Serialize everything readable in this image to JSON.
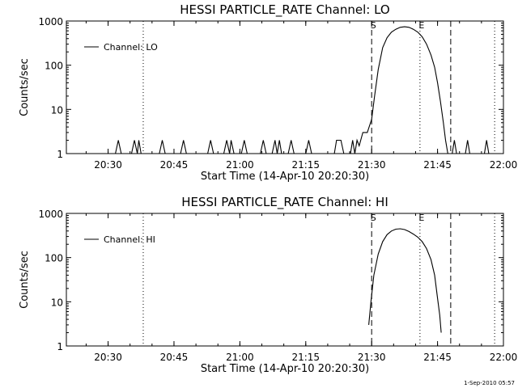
{
  "footer_timestamp": "1-Sep-2010 05:57",
  "chart_data": [
    {
      "type": "line",
      "title": "HESSI PARTICLE_RATE Channel: LO",
      "xlabel": "Start Time (14-Apr-10 20:20:30)",
      "ylabel": "Counts/sec",
      "xlim": [
        "20:20:30",
        "22:00:00"
      ],
      "ylim": [
        1,
        1000
      ],
      "yscale": "log",
      "xticks": [
        "20:30",
        "20:45",
        "21:00",
        "21:15",
        "21:30",
        "21:45",
        "22:00"
      ],
      "yticks": [
        "1",
        "10",
        "100",
        "1000"
      ],
      "legend": {
        "position": "top-left",
        "entries": [
          "Channel: LO"
        ]
      },
      "markers": [
        {
          "label": "S",
          "time": "21:30",
          "style": "dashed"
        },
        {
          "label": "E",
          "time": "21:41",
          "style": "dotted"
        },
        {
          "label": "",
          "time": "21:48",
          "style": "dashed"
        },
        {
          "label": "",
          "time": "20:38",
          "style": "dotted"
        },
        {
          "label": "",
          "time": "21:58",
          "style": "dotted"
        }
      ],
      "series": [
        {
          "name": "Channel: LO",
          "points": [
            [
              "20:20:30",
              1
            ],
            [
              "20:31:40",
              1
            ],
            [
              "20:32:20",
              2
            ],
            [
              "20:33:00",
              1
            ],
            [
              "20:35:20",
              1
            ],
            [
              "20:36:00",
              2
            ],
            [
              "20:36:40",
              1
            ],
            [
              "20:37:00",
              2
            ],
            [
              "20:37:30",
              1
            ],
            [
              "20:41:40",
              1
            ],
            [
              "20:42:20",
              2
            ],
            [
              "20:43:00",
              1
            ],
            [
              "20:46:30",
              1
            ],
            [
              "20:47:10",
              2
            ],
            [
              "20:47:50",
              1
            ],
            [
              "20:52:40",
              1
            ],
            [
              "20:53:20",
              2
            ],
            [
              "20:54:00",
              1
            ],
            [
              "20:56:20",
              1
            ],
            [
              "20:57:00",
              2
            ],
            [
              "20:57:40",
              1
            ],
            [
              "20:58:00",
              2
            ],
            [
              "20:58:40",
              1
            ],
            [
              "21:00:20",
              1
            ],
            [
              "21:01:00",
              2
            ],
            [
              "21:01:40",
              1
            ],
            [
              "21:04:40",
              1
            ],
            [
              "21:05:20",
              2
            ],
            [
              "21:06:00",
              1
            ],
            [
              "21:07:20",
              1
            ],
            [
              "21:08:00",
              2
            ],
            [
              "21:08:30",
              1
            ],
            [
              "21:09:00",
              2
            ],
            [
              "21:09:30",
              1
            ],
            [
              "21:11:00",
              1
            ],
            [
              "21:11:40",
              2
            ],
            [
              "21:12:20",
              1
            ],
            [
              "21:15:00",
              1
            ],
            [
              "21:15:40",
              2
            ],
            [
              "21:16:20",
              1
            ],
            [
              "21:21:30",
              1
            ],
            [
              "21:22:00",
              2
            ],
            [
              "21:23:00",
              2
            ],
            [
              "21:23:40",
              1
            ],
            [
              "21:25:10",
              1
            ],
            [
              "21:25:40",
              2
            ],
            [
              "21:26:10",
              1
            ],
            [
              "21:26:40",
              2
            ],
            [
              "21:27:10",
              1.5
            ],
            [
              "21:28:00",
              3
            ],
            [
              "21:29:00",
              3
            ],
            [
              "21:30:00",
              6
            ],
            [
              "21:30:40",
              20
            ],
            [
              "21:31:30",
              80
            ],
            [
              "21:32:30",
              250
            ],
            [
              "21:33:30",
              420
            ],
            [
              "21:34:30",
              560
            ],
            [
              "21:35:30",
              650
            ],
            [
              "21:36:30",
              720
            ],
            [
              "21:37:30",
              740
            ],
            [
              "21:38:30",
              720
            ],
            [
              "21:39:30",
              650
            ],
            [
              "21:40:30",
              560
            ],
            [
              "21:41:30",
              440
            ],
            [
              "21:42:30",
              300
            ],
            [
              "21:43:30",
              170
            ],
            [
              "21:44:20",
              90
            ],
            [
              "21:45:00",
              40
            ],
            [
              "21:45:40",
              15
            ],
            [
              "21:46:20",
              5
            ],
            [
              "21:46:50",
              2
            ],
            [
              "21:47:20",
              1
            ],
            [
              "21:48:20",
              1
            ],
            [
              "21:48:50",
              2
            ],
            [
              "21:49:20",
              1
            ],
            [
              "21:51:20",
              1
            ],
            [
              "21:51:50",
              2
            ],
            [
              "21:52:20",
              1
            ],
            [
              "21:55:40",
              1
            ],
            [
              "21:56:10",
              2
            ],
            [
              "21:56:40",
              1
            ],
            [
              "21:58:00",
              1
            ]
          ]
        }
      ]
    },
    {
      "type": "line",
      "title": "HESSI PARTICLE_RATE Channel: HI",
      "xlabel": "Start Time (14-Apr-10 20:20:30)",
      "ylabel": "Counts/sec",
      "xlim": [
        "20:20:30",
        "22:00:00"
      ],
      "ylim": [
        1,
        1000
      ],
      "yscale": "log",
      "xticks": [
        "20:30",
        "20:45",
        "21:00",
        "21:15",
        "21:30",
        "21:45",
        "22:00"
      ],
      "yticks": [
        "1",
        "10",
        "100",
        "1000"
      ],
      "legend": {
        "position": "top-left",
        "entries": [
          "Channel: HI"
        ]
      },
      "markers": [
        {
          "label": "S",
          "time": "21:30",
          "style": "dashed"
        },
        {
          "label": "E",
          "time": "21:41",
          "style": "dotted"
        },
        {
          "label": "",
          "time": "21:48",
          "style": "dashed"
        },
        {
          "label": "",
          "time": "20:38",
          "style": "dotted"
        },
        {
          "label": "",
          "time": "21:58",
          "style": "dotted"
        }
      ],
      "series": [
        {
          "name": "Channel: HI",
          "points": [
            [
              "21:29:20",
              3
            ],
            [
              "21:29:50",
              10
            ],
            [
              "21:30:30",
              40
            ],
            [
              "21:31:30",
              120
            ],
            [
              "21:32:30",
              230
            ],
            [
              "21:33:30",
              330
            ],
            [
              "21:34:30",
              400
            ],
            [
              "21:35:30",
              440
            ],
            [
              "21:36:30",
              450
            ],
            [
              "21:37:30",
              430
            ],
            [
              "21:38:30",
              390
            ],
            [
              "21:39:30",
              340
            ],
            [
              "21:40:30",
              290
            ],
            [
              "21:41:30",
              230
            ],
            [
              "21:42:30",
              160
            ],
            [
              "21:43:30",
              90
            ],
            [
              "21:44:20",
              40
            ],
            [
              "21:45:00",
              12
            ],
            [
              "21:45:30",
              5
            ],
            [
              "21:45:50",
              2
            ]
          ]
        }
      ]
    }
  ]
}
